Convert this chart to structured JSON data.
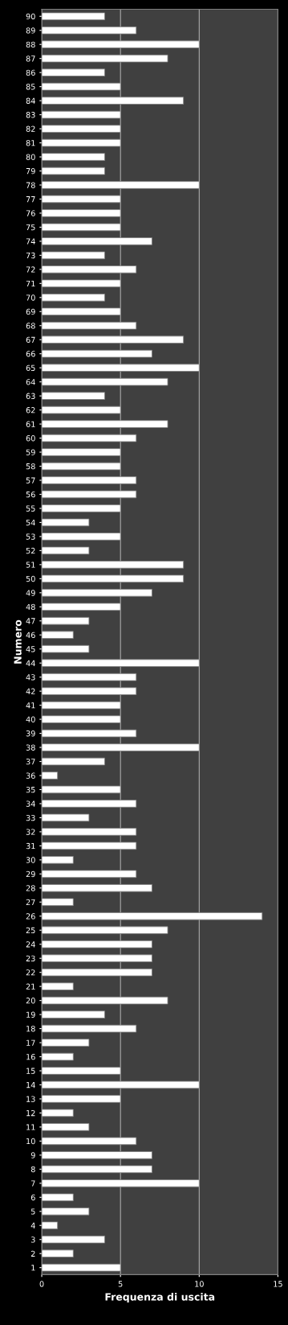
{
  "chart_data": {
    "type": "bar",
    "orientation": "horizontal",
    "xlabel": "Frequenza di uscita",
    "ylabel": "Numero",
    "categories": [
      "90",
      "89",
      "88",
      "87",
      "86",
      "85",
      "84",
      "83",
      "82",
      "81",
      "80",
      "79",
      "78",
      "77",
      "76",
      "75",
      "74",
      "73",
      "72",
      "71",
      "70",
      "69",
      "68",
      "67",
      "66",
      "65",
      "64",
      "63",
      "62",
      "61",
      "60",
      "59",
      "58",
      "57",
      "56",
      "55",
      "54",
      "53",
      "52",
      "51",
      "50",
      "49",
      "48",
      "47",
      "46",
      "45",
      "44",
      "43",
      "42",
      "41",
      "40",
      "39",
      "38",
      "37",
      "36",
      "35",
      "34",
      "33",
      "32",
      "31",
      "30",
      "29",
      "28",
      "27",
      "26",
      "25",
      "24",
      "23",
      "22",
      "21",
      "20",
      "19",
      "18",
      "17",
      "16",
      "15",
      "14",
      "13",
      "12",
      "11",
      "10",
      "9",
      "8",
      "7",
      "6",
      "5",
      "4",
      "3",
      "2",
      "1"
    ],
    "values": [
      4,
      6,
      10,
      8,
      4,
      5,
      9,
      5,
      5,
      5,
      4,
      4,
      10,
      5,
      5,
      5,
      7,
      4,
      6,
      5,
      4,
      5,
      6,
      9,
      7,
      10,
      8,
      4,
      5,
      8,
      6,
      5,
      5,
      6,
      6,
      5,
      3,
      5,
      3,
      9,
      9,
      7,
      5,
      3,
      2,
      3,
      10,
      6,
      6,
      5,
      5,
      6,
      10,
      4,
      1,
      5,
      6,
      3,
      6,
      6,
      2,
      6,
      7,
      2,
      14,
      8,
      7,
      7,
      7,
      2,
      8,
      4,
      6,
      3,
      2,
      5,
      10,
      5,
      2,
      3,
      6,
      7,
      7,
      10,
      2,
      3,
      1,
      4,
      2,
      5
    ],
    "color": "#ffffff",
    "xlim": [
      0,
      15
    ],
    "xticks": [
      0,
      5,
      10,
      15
    ],
    "grid": "x"
  }
}
